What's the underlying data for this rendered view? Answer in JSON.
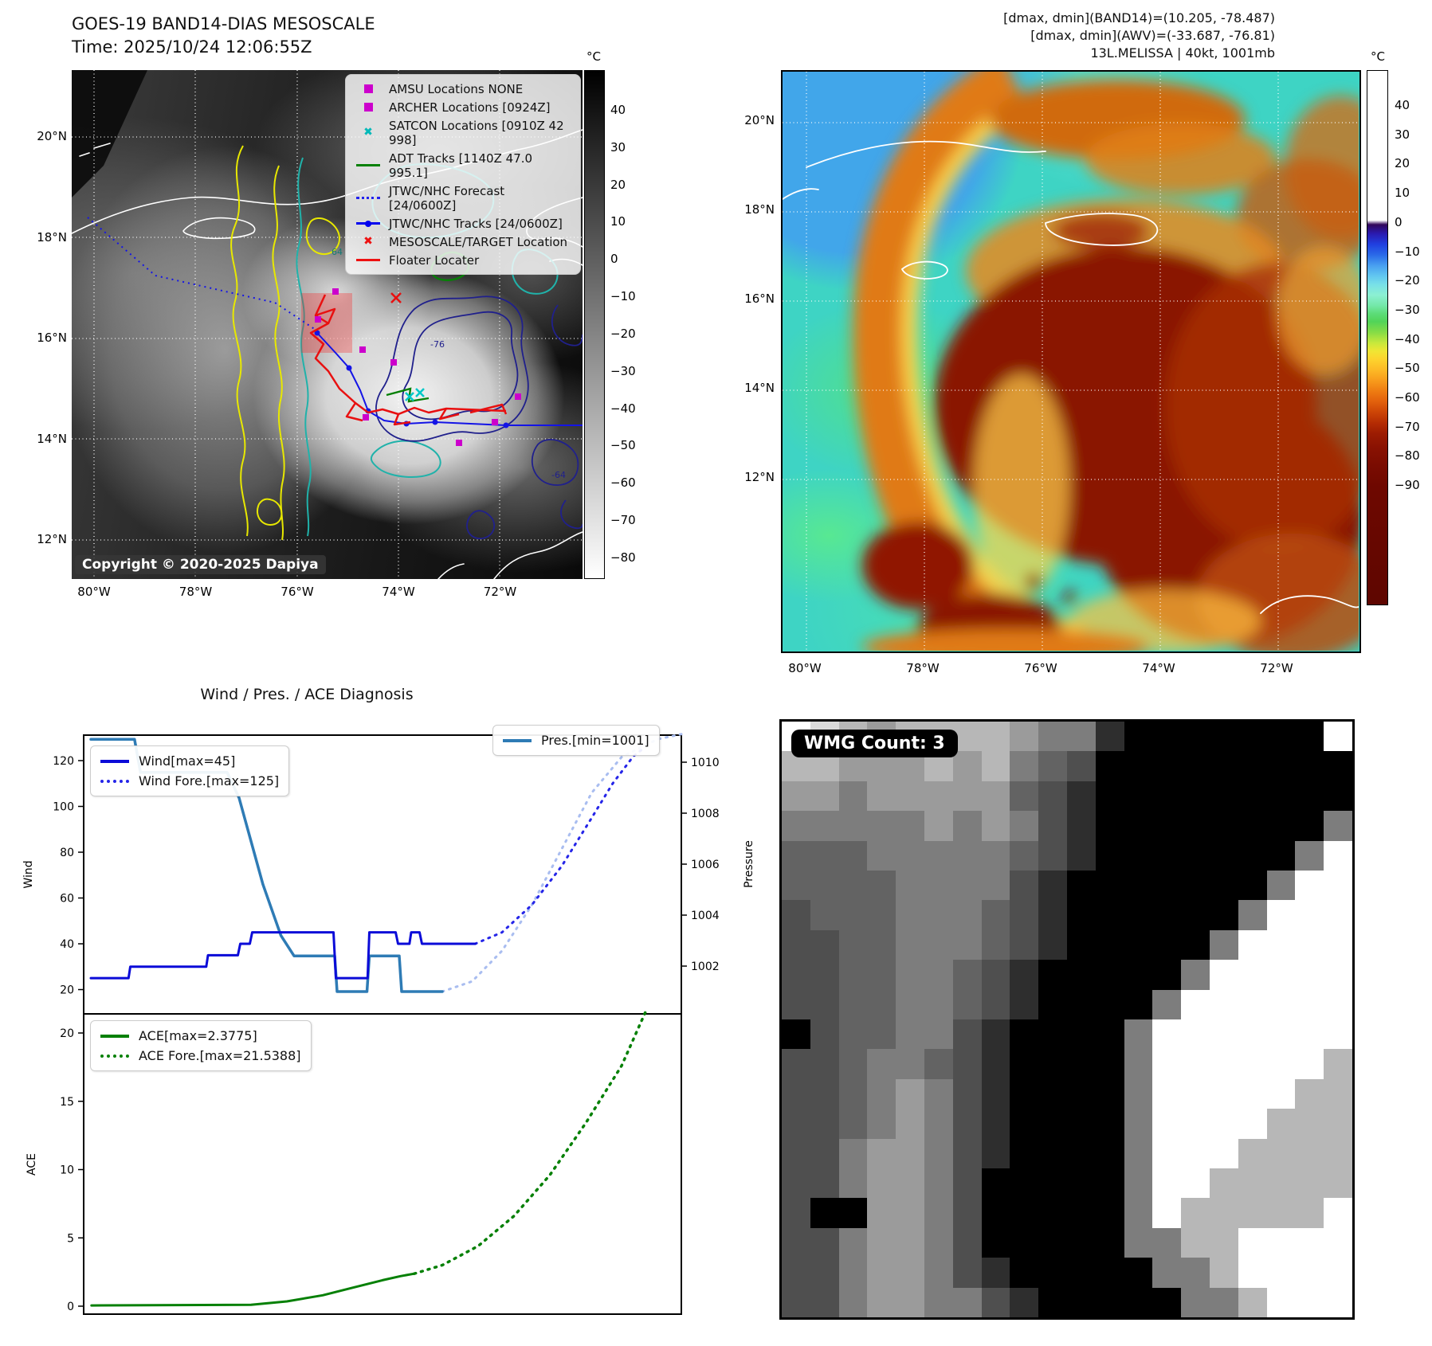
{
  "goes": {
    "title_line1": "GOES-19 BAND14-DIAS MESOSCALE",
    "title_line2": "Time: 2025/10/24 12:06:55Z",
    "copyright": "Copyright © 2020-2025 Dapiya",
    "lat_labels": [
      "20°N",
      "18°N",
      "16°N",
      "14°N",
      "12°N"
    ],
    "lon_labels": [
      "80°W",
      "78°W",
      "76°W",
      "74°W",
      "72°W"
    ],
    "contour_labels": {
      "a": "-76",
      "b": "-64",
      "c": "64"
    },
    "colorbar": {
      "unit": "°C",
      "ticks": [
        40,
        30,
        20,
        10,
        0,
        -10,
        -20,
        -30,
        -40,
        -50,
        -60,
        -70,
        -80
      ]
    },
    "legend": {
      "items": [
        {
          "symbol": "square",
          "color": "#cc00cc",
          "label": "AMSU Locations NONE"
        },
        {
          "symbol": "square",
          "color": "#cc00cc",
          "label": "ARCHER Locations [0924Z]"
        },
        {
          "symbol": "x",
          "color": "#00b8b8",
          "label": "SATCON Locations [0910Z 42 998]"
        },
        {
          "symbol": "line",
          "color": "#068006",
          "label": "ADT Tracks [1140Z 47.0 995.1]"
        },
        {
          "symbol": "dotted",
          "color": "#2222ee",
          "label": "JTWC/NHC Forecast [24/0600Z]"
        },
        {
          "symbol": "line-dot",
          "color": "#0000ee",
          "label": "JTWC/NHC Tracks [24/0600Z]"
        },
        {
          "symbol": "x",
          "color": "#ee1111",
          "label": "MESOSCALE/TARGET Location"
        },
        {
          "symbol": "line",
          "color": "#ee1111",
          "label": "Floater Locater"
        }
      ]
    }
  },
  "awv": {
    "header_line1": "[dmax, dmin](BAND14)=(10.205, -78.487)",
    "header_line2": "[dmax, dmin](AWV)=(-33.687, -76.81)",
    "header_line3": "13L.MELISSA | 40kt, 1001mb",
    "lat_labels": [
      "20°N",
      "18°N",
      "16°N",
      "14°N",
      "12°N"
    ],
    "lon_labels": [
      "80°W",
      "78°W",
      "76°W",
      "74°W",
      "72°W"
    ],
    "colorbar": {
      "unit": "°C",
      "ticks": [
        40,
        30,
        20,
        10,
        0,
        -10,
        -20,
        -30,
        -40,
        -50,
        -60,
        -70,
        -80,
        -90
      ]
    }
  },
  "chart_data": [
    {
      "type": "line",
      "title": "Wind / Pres. / ACE Diagnosis",
      "ylabel": "Wind",
      "y2label": "Pressure",
      "ylim": [
        10,
        131
      ],
      "y2lim": [
        1000.2,
        1011.3
      ],
      "yticks": [
        20,
        40,
        60,
        80,
        100,
        120
      ],
      "y2ticks": [
        1002,
        1004,
        1006,
        1008,
        1010
      ],
      "legend_position": "upper left / upper right",
      "grid": false,
      "series": [
        {
          "name": "Wind[max=45]",
          "axis": "y",
          "style": "solid",
          "color": "#0b0bd8",
          "points": [
            [
              0.012,
              25
            ],
            [
              0.075,
              25
            ],
            [
              0.078,
              30
            ],
            [
              0.205,
              30
            ],
            [
              0.208,
              35
            ],
            [
              0.258,
              35
            ],
            [
              0.262,
              40
            ],
            [
              0.278,
              40
            ],
            [
              0.282,
              45
            ],
            [
              0.418,
              45
            ],
            [
              0.422,
              25
            ],
            [
              0.475,
              25
            ],
            [
              0.478,
              45
            ],
            [
              0.522,
              45
            ],
            [
              0.526,
              40
            ],
            [
              0.545,
              40
            ],
            [
              0.548,
              45
            ],
            [
              0.562,
              45
            ],
            [
              0.566,
              40
            ],
            [
              0.655,
              40
            ]
          ]
        },
        {
          "name": "Wind Fore.[max=125]",
          "axis": "y",
          "style": "dotted",
          "color": "#2525e8",
          "points": [
            [
              0.655,
              40
            ],
            [
              0.7,
              45
            ],
            [
              0.75,
              57
            ],
            [
              0.8,
              74
            ],
            [
              0.85,
              95
            ],
            [
              0.885,
              110
            ],
            [
              0.92,
              122
            ],
            [
              0.935,
              125
            ]
          ]
        },
        {
          "name": "Pres.[min=1001]",
          "axis": "y2",
          "style": "solid",
          "color": "#2e7bb5",
          "points": [
            [
              0.012,
              1010.9
            ],
            [
              0.085,
              1010.9
            ],
            [
              0.095,
              1009.6
            ],
            [
              0.24,
              1009.6
            ],
            [
              0.26,
              1008.6
            ],
            [
              0.3,
              1005.2
            ],
            [
              0.33,
              1003.2
            ],
            [
              0.352,
              1002.4
            ],
            [
              0.42,
              1002.4
            ],
            [
              0.424,
              1001
            ],
            [
              0.474,
              1001
            ],
            [
              0.478,
              1002.4
            ],
            [
              0.528,
              1002.4
            ],
            [
              0.532,
              1001
            ],
            [
              0.6,
              1001
            ]
          ]
        },
        {
          "name": "",
          "axis": "y2",
          "style": "dotted",
          "color": "#a9bdf0",
          "points": [
            [
              0.6,
              1001
            ],
            [
              0.65,
              1001.4
            ],
            [
              0.7,
              1002.6
            ],
            [
              0.75,
              1004.4
            ],
            [
              0.8,
              1006.6
            ],
            [
              0.85,
              1008.8
            ],
            [
              0.9,
              1010.2
            ],
            [
              0.96,
              1010.9
            ],
            [
              1.0,
              1011.1
            ]
          ]
        }
      ]
    },
    {
      "type": "line",
      "ylabel": "ACE",
      "ylim": [
        -0.9,
        22
      ],
      "yticks": [
        0,
        5,
        10,
        15,
        20
      ],
      "legend_position": "upper left",
      "grid": false,
      "series": [
        {
          "name": "ACE[max=2.3775]",
          "style": "solid",
          "color": "#068006",
          "points": [
            [
              0.013,
              0.05
            ],
            [
              0.28,
              0.1
            ],
            [
              0.34,
              0.35
            ],
            [
              0.4,
              0.8
            ],
            [
              0.45,
              1.35
            ],
            [
              0.5,
              1.9
            ],
            [
              0.53,
              2.2
            ],
            [
              0.553,
              2.38
            ]
          ]
        },
        {
          "name": "ACE Fore.[max=21.5388]",
          "style": "dotted",
          "color": "#068006",
          "points": [
            [
              0.553,
              2.38
            ],
            [
              0.6,
              3.0
            ],
            [
              0.66,
              4.4
            ],
            [
              0.72,
              6.6
            ],
            [
              0.78,
              9.6
            ],
            [
              0.84,
              13.4
            ],
            [
              0.9,
              17.6
            ],
            [
              0.94,
              21.54
            ]
          ]
        }
      ]
    }
  ],
  "wmg": {
    "badge": "WMG Count: 3",
    "palette": {
      "0": "#000000",
      "1": "#2e2e2e",
      "2": "#4f4f4f",
      "3": "#636363",
      "4": "#7d7d7d",
      "5": "#9b9b9b",
      "6": "#b7b7b7",
      "7": "#d9d9d9",
      "8": "#ffffff"
    },
    "rows": [
      "87656666544100000008",
      "66555656432000000000",
      "55455555321000000000",
      "44444545421000000004",
      "33344444321000000048",
      "33334444210000000488",
      "23334443210000004888",
      "22334443210000048888",
      "22334432100000488888",
      "22334432100004888888",
      "02334421000048888888",
      "22344321000048888886",
      "22345421000048888866",
      "22345421000048888666",
      "22455421000048886666",
      "22455420000048866666",
      "20055420000048666668",
      "22455420000044668888",
      "22455421000004468888",
      "22455442100000446888"
    ]
  }
}
